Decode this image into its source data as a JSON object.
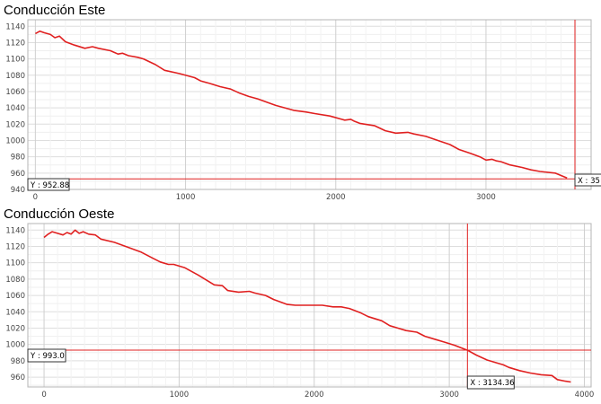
{
  "chart_data": [
    {
      "type": "line",
      "title": "Conducción Este",
      "xlim": [
        -50,
        3700
      ],
      "ylim": [
        940,
        1148
      ],
      "x_ticks": [
        0,
        1000,
        2000,
        3000
      ],
      "y_ticks": [
        940,
        960,
        980,
        1000,
        1020,
        1040,
        1060,
        1080,
        1100,
        1120,
        1140
      ],
      "grid": true,
      "crosshair": {
        "x_label": "X : 35",
        "y_label": "Y : 952.88",
        "y_value": 952.88
      },
      "series": [
        {
          "color": "#e02020",
          "x": [
            0,
            30,
            60,
            100,
            130,
            160,
            200,
            260,
            330,
            380,
            420,
            500,
            550,
            580,
            620,
            680,
            720,
            800,
            860,
            960,
            1060,
            1100,
            1160,
            1230,
            1300,
            1360,
            1420,
            1480,
            1540,
            1600,
            1660,
            1720,
            1800,
            1860,
            1960,
            2060,
            2100,
            2120,
            2160,
            2260,
            2330,
            2400,
            2480,
            2520,
            2600,
            2680,
            2760,
            2820,
            2900,
            2960,
            3000,
            3040,
            3070,
            3100,
            3160,
            3240,
            3300,
            3360,
            3460,
            3540
          ],
          "y": [
            1131,
            1134,
            1132,
            1130,
            1126,
            1128,
            1121,
            1117,
            1113,
            1115,
            1113,
            1110,
            1106,
            1107,
            1104,
            1102,
            1100,
            1093,
            1086,
            1082,
            1077,
            1073,
            1070,
            1066,
            1063,
            1058,
            1054,
            1051,
            1047,
            1043,
            1040,
            1037,
            1035,
            1033,
            1030,
            1025,
            1026,
            1024,
            1021,
            1018,
            1012,
            1009,
            1010,
            1008,
            1005,
            1000,
            995,
            989,
            984,
            980,
            976,
            977,
            975,
            974,
            970,
            967,
            964,
            962,
            960,
            954
          ]
        }
      ]
    },
    {
      "type": "line",
      "title": "Conducción Oeste",
      "xlim": [
        -120,
        4050
      ],
      "ylim": [
        948,
        1148
      ],
      "x_ticks": [
        0,
        1000,
        2000,
        3000,
        4000
      ],
      "x_tick_labels": [
        "0",
        "1000",
        "2000",
        "3000",
        "4000"
      ],
      "y_ticks": [
        960,
        980,
        1000,
        1020,
        1040,
        1060,
        1080,
        1100,
        1120,
        1140
      ],
      "grid": true,
      "crosshair": {
        "x_label": "X : 3134.36",
        "y_label": "Y : 993.0",
        "x_value": 3134.36,
        "y_value": 993.0
      },
      "series": [
        {
          "color": "#e02020",
          "x": [
            0,
            30,
            60,
            100,
            140,
            170,
            200,
            230,
            260,
            290,
            330,
            380,
            420,
            520,
            620,
            720,
            800,
            860,
            920,
            960,
            1040,
            1140,
            1200,
            1260,
            1320,
            1360,
            1440,
            1520,
            1560,
            1640,
            1700,
            1800,
            1860,
            1960,
            2060,
            2140,
            2200,
            2260,
            2340,
            2400,
            2500,
            2560,
            2620,
            2680,
            2760,
            2820,
            2880,
            2960,
            3040,
            3134,
            3200,
            3280,
            3360,
            3400,
            3440,
            3520,
            3600,
            3680,
            3760,
            3800,
            3860,
            3900
          ],
          "y": [
            1131,
            1135,
            1138,
            1136,
            1134,
            1137,
            1135,
            1140,
            1136,
            1138,
            1135,
            1134,
            1129,
            1125,
            1119,
            1113,
            1106,
            1101,
            1098,
            1098,
            1094,
            1085,
            1079,
            1073,
            1072,
            1066,
            1064,
            1065,
            1063,
            1060,
            1055,
            1049,
            1048,
            1048,
            1048,
            1046,
            1046,
            1044,
            1039,
            1034,
            1029,
            1023,
            1020,
            1017,
            1015,
            1010,
            1007,
            1003,
            999,
            993,
            987,
            981,
            977,
            975,
            972,
            968,
            965,
            963,
            962,
            957,
            955,
            954
          ]
        }
      ]
    }
  ]
}
